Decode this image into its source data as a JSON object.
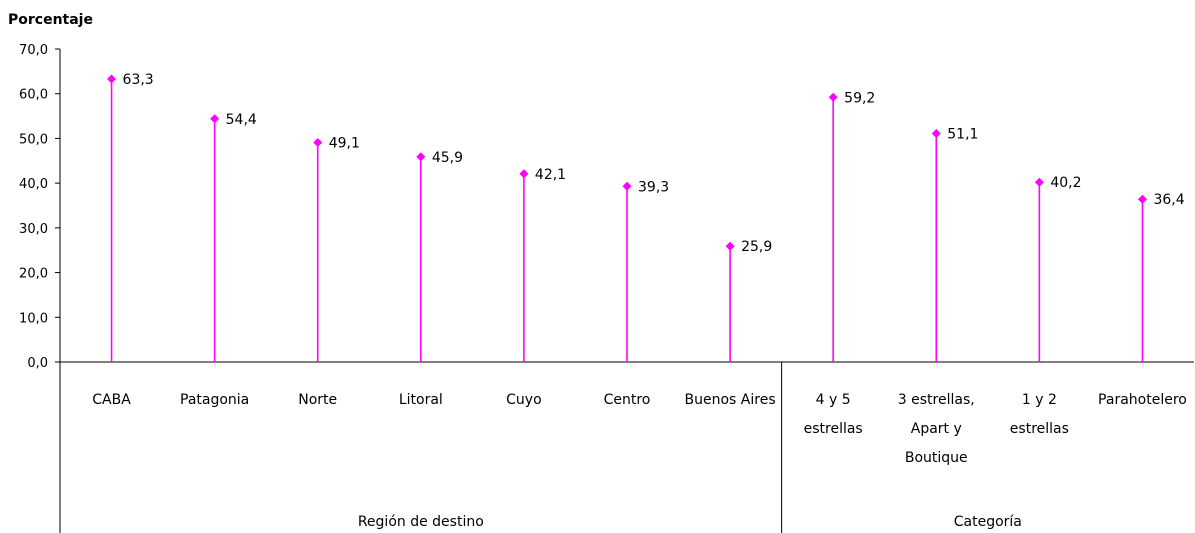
{
  "chart_data": {
    "type": "lollipop",
    "ylabel": "Porcentaje",
    "ylim": [
      0,
      70
    ],
    "yticks": [
      "0,0",
      "10,0",
      "20,0",
      "30,0",
      "40,0",
      "50,0",
      "60,0",
      "70,0"
    ],
    "categories": [
      [
        "CABA"
      ],
      [
        "Patagonia"
      ],
      [
        "Norte"
      ],
      [
        "Litoral"
      ],
      [
        "Cuyo"
      ],
      [
        "Centro"
      ],
      [
        "Buenos Aires"
      ],
      [
        "4 y 5",
        "estrellas"
      ],
      [
        "3 estrellas,",
        "Apart y",
        "Boutique"
      ],
      [
        "1 y 2",
        "estrellas"
      ],
      [
        "Parahotelero"
      ]
    ],
    "values": [
      63.3,
      54.4,
      49.1,
      45.9,
      42.1,
      39.3,
      25.9,
      59.2,
      51.1,
      40.2,
      36.4
    ],
    "value_labels": [
      "63,3",
      "54,4",
      "49,1",
      "45,9",
      "42,1",
      "39,3",
      "25,9",
      "59,2",
      "51,1",
      "40,2",
      "36,4"
    ],
    "groups": [
      {
        "label": "Región de destino",
        "count": 7
      },
      {
        "label": "Categoría",
        "count": 4
      }
    ],
    "grid": false,
    "legend": "none",
    "color": "#ff00ff"
  }
}
